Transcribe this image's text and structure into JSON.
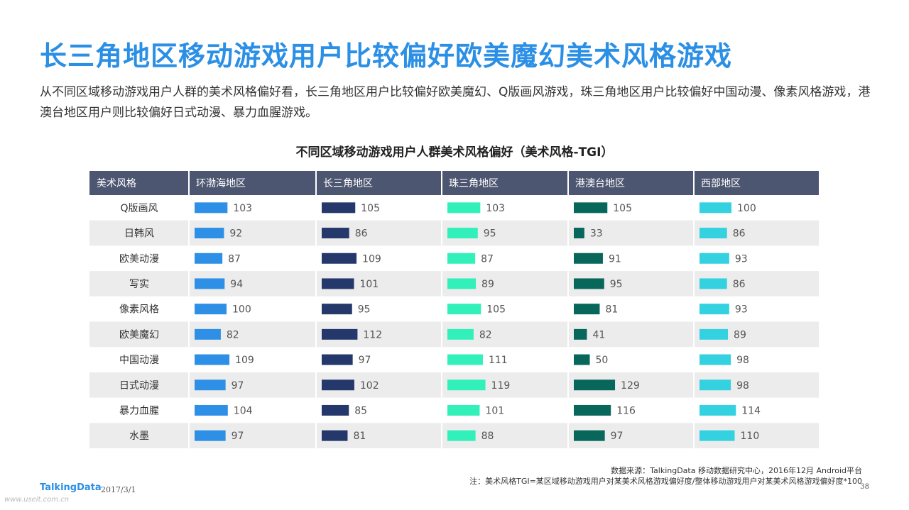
{
  "header": {
    "title": "长三角地区移动游戏用户比较偏好欧美魔幻美术风格游戏",
    "subtitle": "从不同区域移动游戏用户人群的美术风格偏好看，长三角地区用户比较偏好欧美魔幻、Q版画风游戏，珠三角地区用户比较偏好中国动漫、像素风格游戏，港澳台地区用户则比较偏好日式动漫、暴力血腥游戏。"
  },
  "footer": {
    "logo": "TalkingData",
    "date": "2017/3/1",
    "source": "数据来源：TalkingData 移动数据研究中心，2016年12月 Android平台",
    "note": "注：美术风格TGI=某区域移动游戏用户对某美术风格游戏偏好度/整体移动游戏用户对某美术风格游戏偏好度*100",
    "page": "38",
    "watermark": "www.useit.com.cn"
  },
  "chart_data": {
    "type": "table",
    "title": "不同区域移动游戏用户人群美术风格偏好（美术风格-TGI）",
    "row_header": "美术风格",
    "categories": [
      "Q版画风",
      "日韩风",
      "欧美动漫",
      "写实",
      "像素风格",
      "欧美魔幻",
      "中国动漫",
      "日式动漫",
      "暴力血腥",
      "水墨"
    ],
    "series": [
      {
        "name": "环渤海地区",
        "color": "#2e8fe6",
        "values": [
          103,
          92,
          87,
          94,
          100,
          82,
          109,
          97,
          104,
          97
        ]
      },
      {
        "name": "长三角地区",
        "color": "#25386b",
        "values": [
          105,
          86,
          109,
          101,
          95,
          112,
          97,
          102,
          85,
          81
        ]
      },
      {
        "name": "珠三角地区",
        "color": "#32f0b9",
        "values": [
          103,
          95,
          87,
          89,
          105,
          82,
          111,
          119,
          101,
          88
        ]
      },
      {
        "name": "港澳台地区",
        "color": "#07675b",
        "values": [
          105,
          33,
          91,
          95,
          81,
          41,
          50,
          129,
          116,
          97
        ]
      },
      {
        "name": "西部地区",
        "color": "#34d2e0",
        "values": [
          100,
          86,
          93,
          86,
          93,
          89,
          98,
          98,
          114,
          110
        ]
      }
    ],
    "header_color": "#4d5670",
    "stripe_color": "#ececec"
  }
}
